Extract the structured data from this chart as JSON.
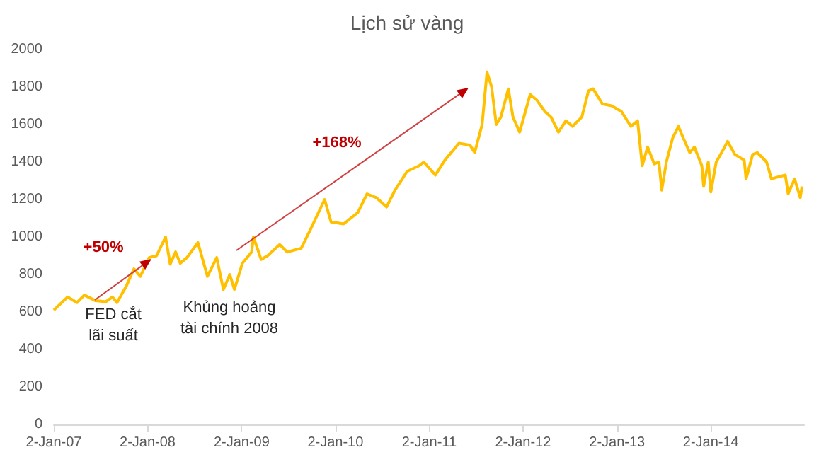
{
  "chart_data": {
    "type": "line",
    "title": "Lịch sử vàng",
    "x": [
      "2007-01-02",
      "2007-02-25",
      "2007-04-02",
      "2007-05-01",
      "2007-06-14",
      "2007-07-24",
      "2007-08-18",
      "2007-09-05",
      "2007-10-12",
      "2007-11-10",
      "2007-12-05",
      "2008-01-08",
      "2008-02-06",
      "2008-03-12",
      "2008-03-30",
      "2008-04-20",
      "2008-05-08",
      "2008-06-03",
      "2008-07-16",
      "2008-08-22",
      "2008-09-27",
      "2008-10-23",
      "2008-11-17",
      "2008-12-05",
      "2009-01-05",
      "2009-02-10",
      "2009-02-17",
      "2009-03-19",
      "2009-04-13",
      "2009-05-30",
      "2009-06-28",
      "2009-08-22",
      "2009-09-27",
      "2009-11-21",
      "2009-12-16",
      "2010-02-03",
      "2010-03-30",
      "2010-05-05",
      "2010-06-10",
      "2010-07-20",
      "2010-08-22",
      "2010-10-08",
      "2010-11-24",
      "2010-12-12",
      "2011-01-26",
      "2011-03-04",
      "2011-04-28",
      "2011-06-10",
      "2011-06-28",
      "2011-07-27",
      "2011-08-15",
      "2011-09-02",
      "2011-09-20",
      "2011-10-08",
      "2011-11-06",
      "2011-11-24",
      "2011-12-20",
      "2012-01-30",
      "2012-02-25",
      "2012-03-27",
      "2012-04-20",
      "2012-05-19",
      "2012-06-17",
      "2012-07-13",
      "2012-08-18",
      "2012-09-13",
      "2012-10-01",
      "2012-11-06",
      "2012-12-12",
      "2013-01-19",
      "2013-02-25",
      "2013-03-23",
      "2013-04-10",
      "2013-05-01",
      "2013-05-27",
      "2013-06-14",
      "2013-06-25",
      "2013-07-13",
      "2013-08-07",
      "2013-08-29",
      "2013-09-16",
      "2013-10-12",
      "2013-10-30",
      "2013-11-28",
      "2013-12-05",
      "2013-12-23",
      "2014-01-02",
      "2014-01-23",
      "2014-02-17",
      "2014-03-08",
      "2014-04-06",
      "2014-05-12",
      "2014-05-19",
      "2014-06-14",
      "2014-07-02",
      "2014-08-07",
      "2014-08-26",
      "2014-09-20",
      "2014-10-19",
      "2014-10-30",
      "2014-11-24",
      "2014-12-16",
      "2014-12-23"
    ],
    "values": [
      610,
      680,
      650,
      690,
      660,
      655,
      680,
      650,
      740,
      830,
      790,
      890,
      900,
      1000,
      855,
      920,
      860,
      890,
      970,
      790,
      890,
      720,
      800,
      720,
      860,
      920,
      1000,
      880,
      900,
      960,
      920,
      940,
      1040,
      1200,
      1080,
      1070,
      1130,
      1230,
      1210,
      1160,
      1250,
      1350,
      1380,
      1400,
      1330,
      1410,
      1500,
      1490,
      1450,
      1600,
      1880,
      1800,
      1600,
      1640,
      1790,
      1640,
      1560,
      1760,
      1730,
      1670,
      1640,
      1560,
      1620,
      1590,
      1640,
      1780,
      1790,
      1710,
      1700,
      1670,
      1590,
      1620,
      1380,
      1480,
      1390,
      1400,
      1250,
      1400,
      1530,
      1590,
      1530,
      1450,
      1480,
      1380,
      1270,
      1400,
      1240,
      1400,
      1460,
      1510,
      1440,
      1410,
      1310,
      1440,
      1450,
      1400,
      1310,
      1320,
      1330,
      1230,
      1310,
      1210,
      1270
    ],
    "color": "#ffc000",
    "xlim": [
      "2007-01-02",
      "2014-12-31"
    ],
    "xticks": [
      {
        "value": "2007-01-02",
        "label": "2-Jan-07"
      },
      {
        "value": "2008-01-02",
        "label": "2-Jan-08"
      },
      {
        "value": "2009-01-02",
        "label": "2-Jan-09"
      },
      {
        "value": "2010-01-02",
        "label": "2-Jan-10"
      },
      {
        "value": "2011-01-02",
        "label": "2-Jan-11"
      },
      {
        "value": "2012-01-02",
        "label": "2-Jan-12"
      },
      {
        "value": "2013-01-02",
        "label": "2-Jan-13"
      },
      {
        "value": "2014-01-02",
        "label": "2-Jan-14"
      }
    ],
    "ylim": [
      0,
      2000
    ],
    "yticks": [
      0,
      200,
      400,
      600,
      800,
      1000,
      1200,
      1400,
      1600,
      1800,
      2000
    ],
    "grid": false,
    "marker": "none",
    "line_style": "solid",
    "annotations": [
      "+50%",
      "+168%",
      "FED cắt\nlãi suất",
      "Khủng hoảng\ntài chính 2008"
    ]
  }
}
